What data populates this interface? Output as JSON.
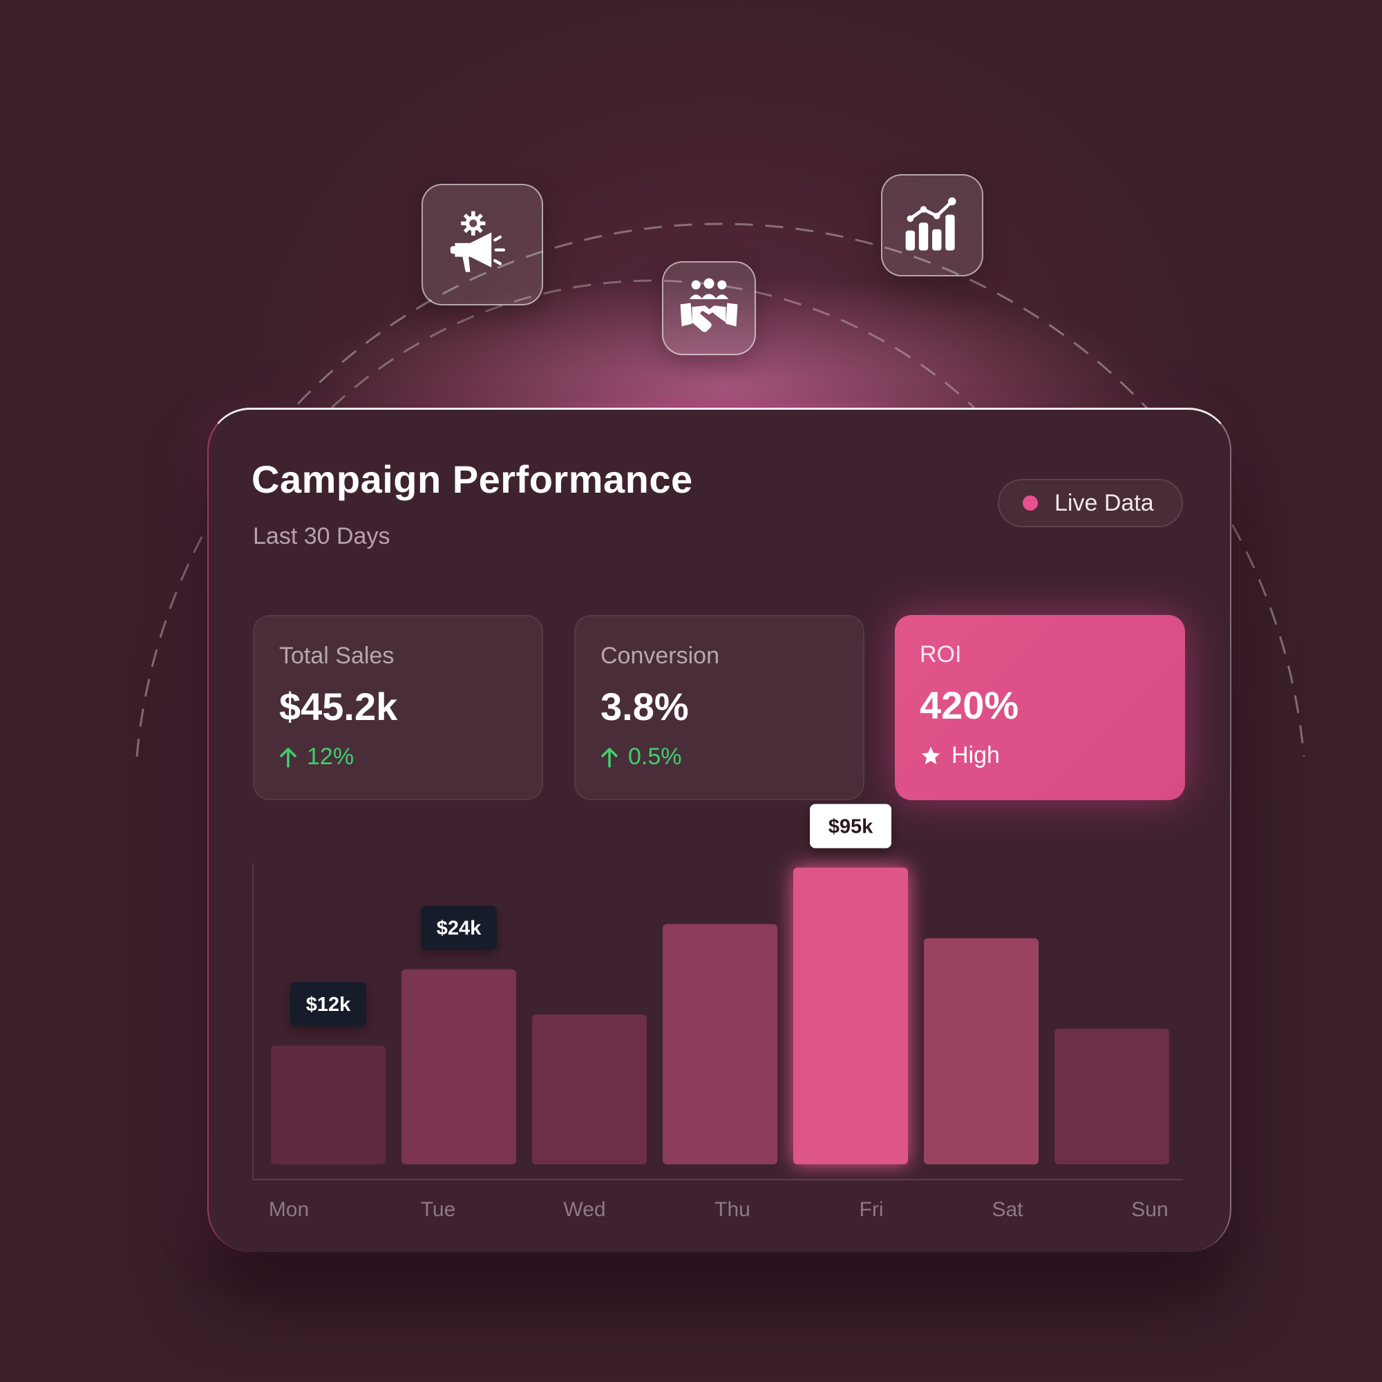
{
  "dashboard": {
    "title": "Campaign Performance",
    "subtitle": "Last 30 Days",
    "live_badge": "Live Data"
  },
  "stats": [
    {
      "label": "Total Sales",
      "value": "$45.2k",
      "change": "12%",
      "trend": "up"
    },
    {
      "label": "Conversion",
      "value": "3.8%",
      "change": "0.5%",
      "trend": "up"
    },
    {
      "label": "ROI",
      "value": "420%",
      "badge": "High",
      "highlight": true
    }
  ],
  "icons": [
    "megaphone-gear-icon",
    "team-handshake-icon",
    "growth-chart-icon",
    "arrow-up-icon",
    "star-icon"
  ],
  "colors": {
    "accent": "#e0558a",
    "positive": "#3fcf6c",
    "card_bg": "#3f222f",
    "page_bg": "#3a1f2b",
    "tooltip_dark": "#141b2b",
    "tooltip_light": "#ffffff"
  },
  "chart_data": {
    "type": "bar",
    "categories": [
      "Mon",
      "Tue",
      "Wed",
      "Thu",
      "Fri",
      "Sat",
      "Sun"
    ],
    "values": [
      42,
      69,
      53,
      85,
      105,
      80,
      48
    ],
    "ylim": [
      0,
      110
    ],
    "highlight": "Fri",
    "bar_colors": [
      "#5e2a40",
      "#7b3550",
      "#6c2f47",
      "#8c3c5a",
      "#dd5589",
      "#9a4262",
      "#6c2f47"
    ],
    "annotations": [
      {
        "category": "Mon",
        "label": "$12k",
        "style": "dark"
      },
      {
        "category": "Tue",
        "label": "$24k",
        "style": "dark"
      },
      {
        "category": "Fri",
        "label": "$95k",
        "style": "light"
      }
    ],
    "grid": false,
    "legend": "none"
  }
}
